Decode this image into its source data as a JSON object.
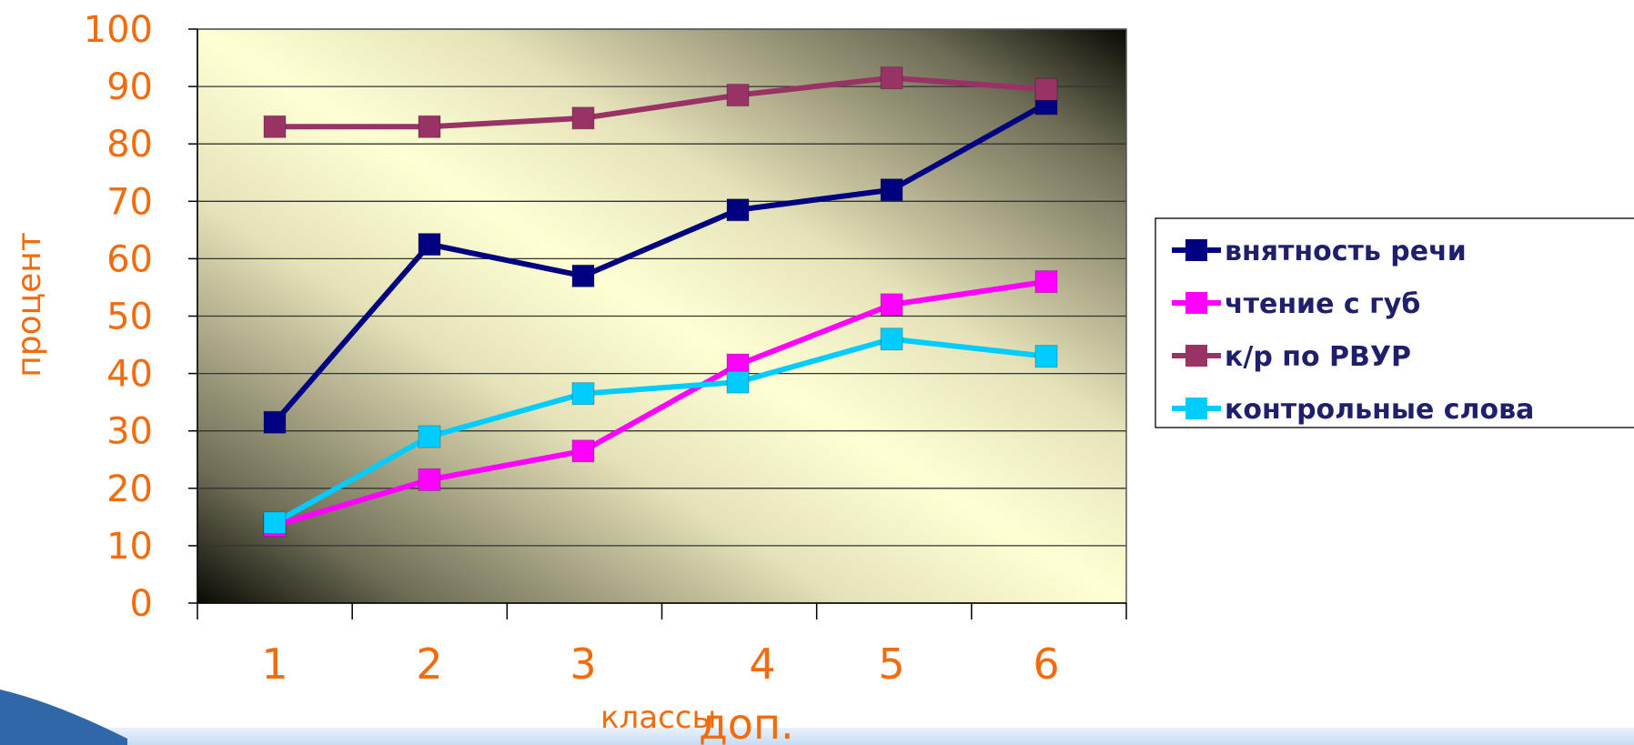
{
  "chart_data": {
    "type": "line",
    "categories": [
      "1",
      "2",
      "3",
      "4",
      "5",
      "6"
    ],
    "ylabel": "процент",
    "xlabel": "классы",
    "x_extra_label": "доп.",
    "ylim": [
      0,
      100
    ],
    "yticks": [
      0,
      10,
      20,
      30,
      40,
      50,
      60,
      70,
      80,
      90,
      100
    ],
    "grid": true,
    "legend_position": "right",
    "series": [
      {
        "name": "внятность речи",
        "color": "#000080",
        "values": [
          31.5,
          62.5,
          57.0,
          68.5,
          72.0,
          87.0
        ]
      },
      {
        "name": "чтение с губ",
        "color": "#ff00ff",
        "values": [
          13.5,
          21.5,
          26.5,
          41.5,
          52.0,
          56.0
        ]
      },
      {
        "name": "к/р по РВУР",
        "color": "#993366",
        "values": [
          83.0,
          83.0,
          84.5,
          88.5,
          91.5,
          89.5
        ]
      },
      {
        "name": "контрольные слова",
        "color": "#00ccff",
        "values": [
          14.0,
          29.0,
          36.5,
          38.5,
          46.0,
          43.0
        ]
      }
    ]
  }
}
